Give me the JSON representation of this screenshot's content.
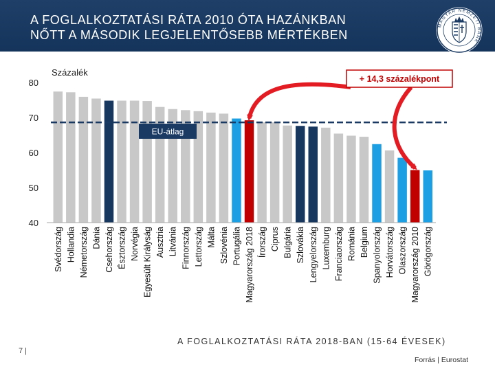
{
  "header": {
    "title_line1": "A FOGLALKOZTATÁSI RÁTA 2010 ÓTA HAZÁNKBAN",
    "title_line2": "NŐTT A MÁSODIK LEGJELENTŐSEBB MÉRTÉKBEN",
    "logo_text": "MAGYAR NEMZETI BANK"
  },
  "colors": {
    "header_bg": "#1a3a63",
    "gray_bar": "#c8c8c8",
    "navy_bar": "#17375e",
    "blue_bar": "#1ca0e3",
    "red_bar": "#c00000",
    "arrow": "#e31b23"
  },
  "chart_data": {
    "type": "bar",
    "title": "A FOGLALKOZTATÁSI RÁTA 2018-BAN (15-64 ÉVESEK)",
    "ylabel": "Százalék",
    "ylim": [
      40,
      80
    ],
    "yticks": [
      40,
      50,
      60,
      70,
      80
    ],
    "categories": [
      "Svédország",
      "Hollandia",
      "Németország",
      "Dánia",
      "Csehország",
      "Észtország",
      "Norvégia",
      "Egyesült Királyság",
      "Ausztria",
      "Litvánia",
      "Finnország",
      "Lettország",
      "Málta",
      "Szlovénia",
      "Portugália",
      "Magyarország 2018",
      "Írország",
      "Ciprus",
      "Bulgária",
      "Szlovákia",
      "Lengyelország",
      "Luxemburg",
      "Franciaország",
      "Románia",
      "Belgium",
      "Spanyolország",
      "Horvátország",
      "Olaszország",
      "Magyarország 2010",
      "Görögország"
    ],
    "values": [
      77.4,
      77.2,
      75.9,
      75.4,
      74.8,
      74.8,
      74.8,
      74.7,
      73.0,
      72.4,
      72.1,
      71.8,
      71.4,
      71.1,
      69.7,
      69.2,
      68.6,
      68.6,
      67.7,
      67.6,
      67.4,
      67.1,
      65.4,
      64.8,
      64.5,
      62.4,
      60.6,
      58.5,
      55.0,
      54.9
    ],
    "bar_colors": [
      "gray",
      "gray",
      "gray",
      "gray",
      "navy",
      "gray",
      "gray",
      "gray",
      "gray",
      "gray",
      "gray",
      "gray",
      "gray",
      "gray",
      "blue",
      "red",
      "gray",
      "gray",
      "gray",
      "navy",
      "navy",
      "gray",
      "gray",
      "gray",
      "gray",
      "blue",
      "gray",
      "blue",
      "red",
      "blue"
    ],
    "reference_line": {
      "label": "EU-átlag",
      "value": 68.6
    },
    "annotation": "+ 14,3 százalékpont"
  },
  "footer": {
    "page_number": "7 |",
    "source": "Forrás | Eurostat"
  }
}
